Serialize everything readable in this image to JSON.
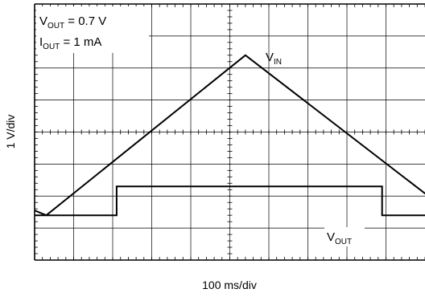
{
  "chart_data": {
    "type": "line",
    "xlabel": "100 ms/div",
    "ylabel": "1 V/div",
    "grid": true,
    "x_divisions": 10,
    "y_divisions": 8,
    "annotations": {
      "vout_setting": {
        "name": "V",
        "sub": "OUT",
        "value": " = 0.7 V"
      },
      "iout_setting": {
        "name": "I",
        "sub": "OUT",
        "value": " = 1 mA"
      }
    },
    "series": [
      {
        "label": {
          "name": "V",
          "sub": "IN"
        },
        "x_div": [
          -0.3,
          0.3,
          5.4,
          10.3
        ],
        "y_div": [
          1.7,
          1.4,
          6.4,
          1.8
        ]
      },
      {
        "label": {
          "name": "V",
          "sub": "OUT"
        },
        "x_div": [
          -0.3,
          2.1,
          2.1,
          8.9,
          8.9,
          10.3
        ],
        "y_div": [
          1.4,
          1.4,
          2.3,
          2.3,
          1.4,
          1.4
        ]
      }
    ]
  }
}
